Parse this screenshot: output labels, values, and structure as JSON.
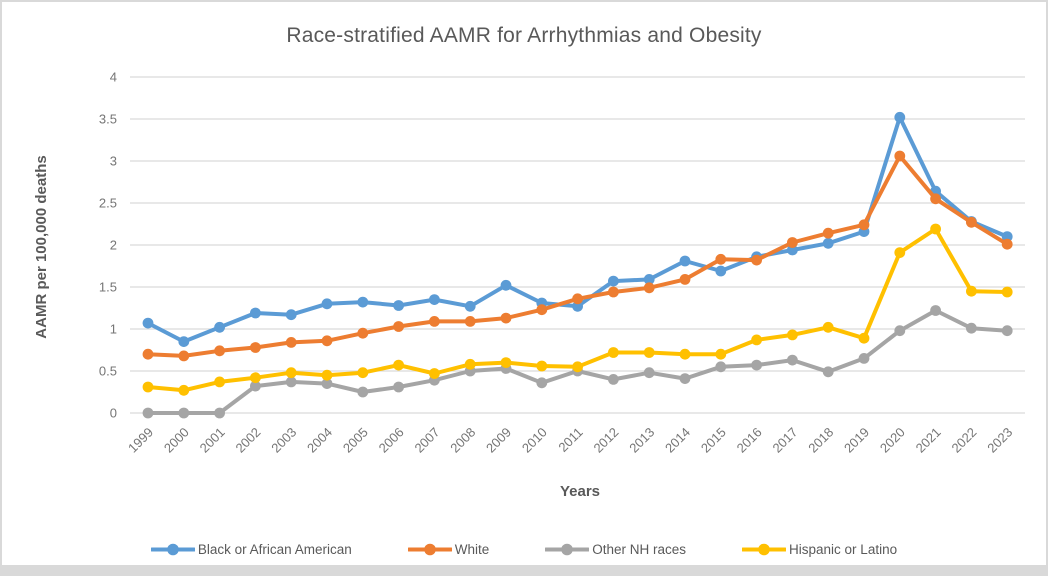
{
  "chart_data": {
    "type": "line",
    "title": "Race-stratified AAMR for Arrhythmias and Obesity",
    "xlabel": "Years",
    "ylabel": "AAMR per 100,000 deaths",
    "x": [
      1999,
      2000,
      2001,
      2002,
      2003,
      2004,
      2005,
      2006,
      2007,
      2008,
      2009,
      2010,
      2011,
      2012,
      2013,
      2014,
      2015,
      2016,
      2017,
      2018,
      2019,
      2020,
      2021,
      2022,
      2023
    ],
    "ylim": [
      0,
      4
    ],
    "ytick_step": 0.5,
    "grid": true,
    "legend_position": "bottom",
    "marker": "circle",
    "series": [
      {
        "name": "Black or African American",
        "color": "#5B9BD5",
        "values": [
          1.07,
          0.85,
          1.02,
          1.19,
          1.17,
          1.3,
          1.32,
          1.28,
          1.35,
          1.27,
          1.52,
          1.31,
          1.27,
          1.57,
          1.59,
          1.81,
          1.69,
          1.86,
          1.94,
          2.02,
          2.16,
          3.52,
          2.64,
          2.28,
          2.1
        ]
      },
      {
        "name": "White",
        "color": "#ED7D31",
        "values": [
          0.7,
          0.68,
          0.74,
          0.78,
          0.84,
          0.86,
          0.95,
          1.03,
          1.09,
          1.09,
          1.13,
          1.23,
          1.36,
          1.44,
          1.49,
          1.59,
          1.83,
          1.82,
          2.03,
          2.14,
          2.24,
          3.06,
          2.55,
          2.27,
          2.01
        ]
      },
      {
        "name": "Other NH races",
        "color": "#A5A5A5",
        "values": [
          0.0,
          0.0,
          0.0,
          0.32,
          0.37,
          0.35,
          0.25,
          0.31,
          0.39,
          0.5,
          0.53,
          0.36,
          0.5,
          0.4,
          0.48,
          0.41,
          0.55,
          0.57,
          0.63,
          0.49,
          0.65,
          0.98,
          1.22,
          1.01,
          0.98
        ]
      },
      {
        "name": "Hispanic or Latino",
        "color": "#FFC000",
        "values": [
          0.31,
          0.27,
          0.37,
          0.42,
          0.48,
          0.45,
          0.48,
          0.57,
          0.47,
          0.58,
          0.6,
          0.56,
          0.55,
          0.72,
          0.72,
          0.7,
          0.7,
          0.87,
          0.93,
          1.02,
          0.89,
          1.91,
          2.19,
          1.45,
          1.44
        ]
      }
    ],
    "colors": {
      "grid": "#d9d9d9",
      "tick_label": "#757575",
      "title": "#595959"
    }
  }
}
